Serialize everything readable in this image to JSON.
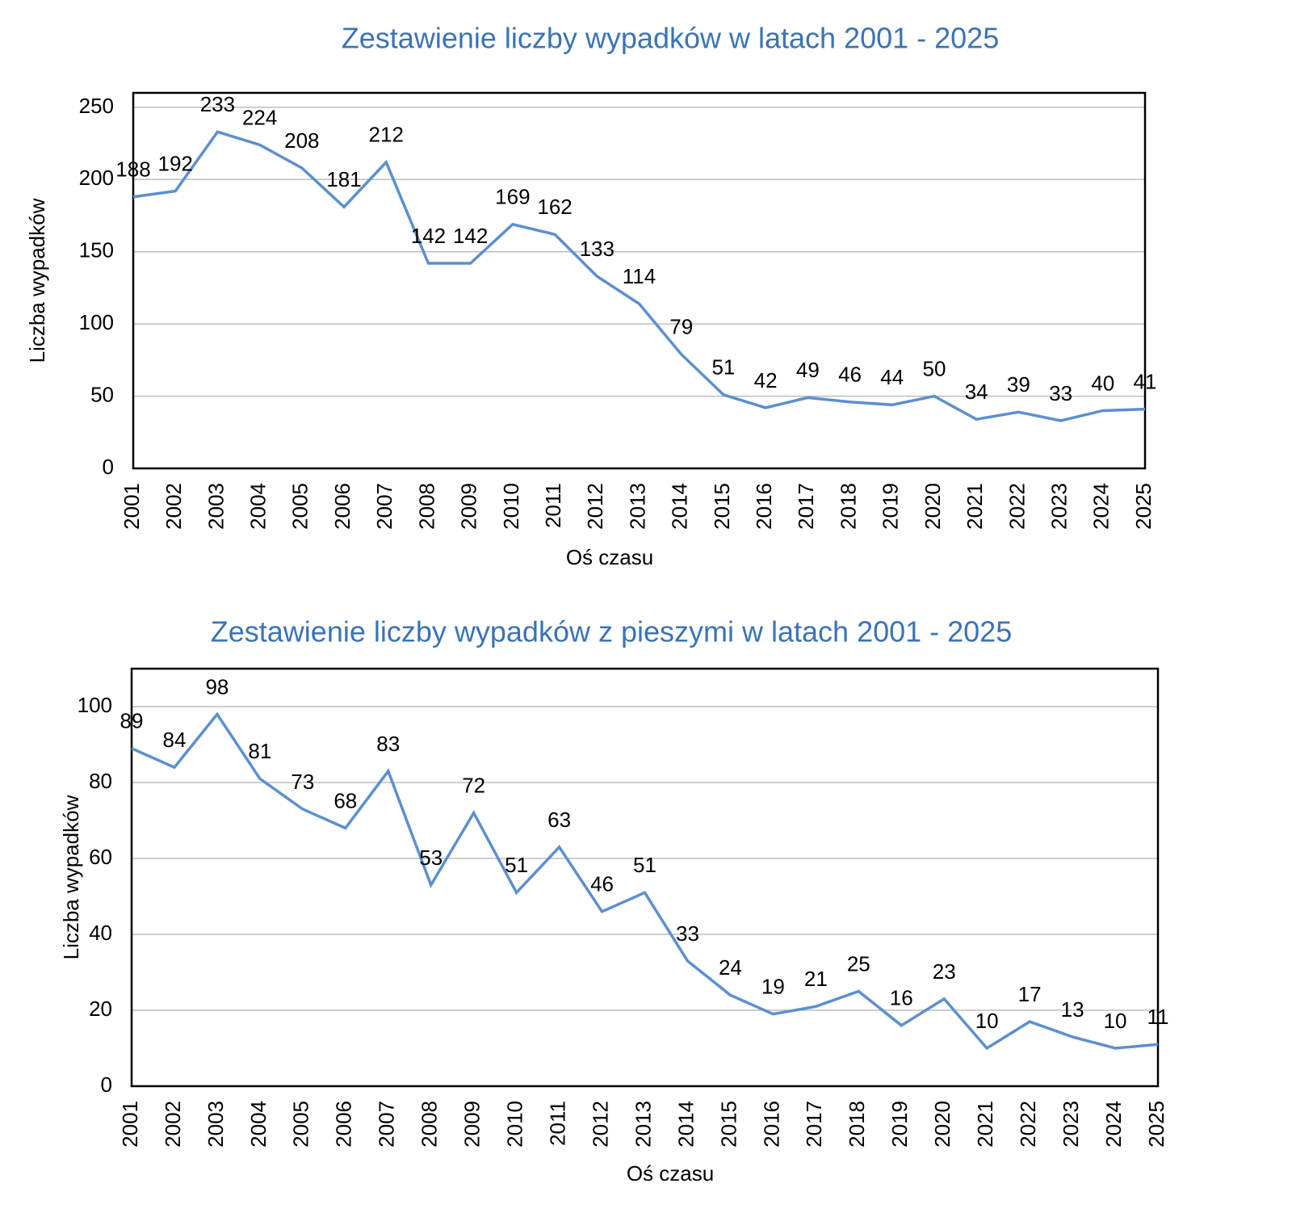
{
  "chart_data": [
    {
      "type": "line",
      "title": "Zestawienie liczby wypadków w latach 2001 - 2025",
      "x_label": "Oś czasu",
      "y_label": "Liczba wypadków",
      "categories": [
        "2001",
        "2002",
        "2003",
        "2004",
        "2005",
        "2006",
        "2007",
        "2008",
        "2009",
        "2010",
        "2011",
        "2012",
        "2013",
        "2014",
        "2015",
        "2016",
        "2017",
        "2018",
        "2019",
        "2020",
        "2021",
        "2022",
        "2023",
        "2024",
        "2025"
      ],
      "values": [
        188,
        192,
        233,
        224,
        208,
        181,
        212,
        142,
        142,
        169,
        162,
        133,
        114,
        79,
        51,
        42,
        49,
        46,
        44,
        50,
        34,
        39,
        33,
        40,
        41
      ],
      "color": "#5b8fcf",
      "ylim": [
        0,
        260
      ],
      "yticks": [
        0,
        50,
        100,
        150,
        200,
        250
      ],
      "grid": true
    },
    {
      "type": "line",
      "title": "Zestawienie liczby wypadków z pieszymi w latach 2001 - 2025",
      "x_label": "Oś czasu",
      "y_label": "Liczba wypadków",
      "categories": [
        "2001",
        "2002",
        "2003",
        "2004",
        "2005",
        "2006",
        "2007",
        "2008",
        "2009",
        "2010",
        "2011",
        "2012",
        "2013",
        "2014",
        "2015",
        "2016",
        "2017",
        "2018",
        "2019",
        "2020",
        "2021",
        "2022",
        "2023",
        "2024",
        "2025"
      ],
      "values": [
        89,
        84,
        98,
        81,
        73,
        68,
        83,
        53,
        72,
        51,
        63,
        46,
        51,
        33,
        24,
        19,
        21,
        25,
        16,
        23,
        10,
        17,
        13,
        10,
        11
      ],
      "color": "#5b8fcf",
      "ylim": [
        0,
        110
      ],
      "yticks": [
        0,
        20,
        40,
        60,
        80,
        100
      ],
      "grid": true
    }
  ]
}
